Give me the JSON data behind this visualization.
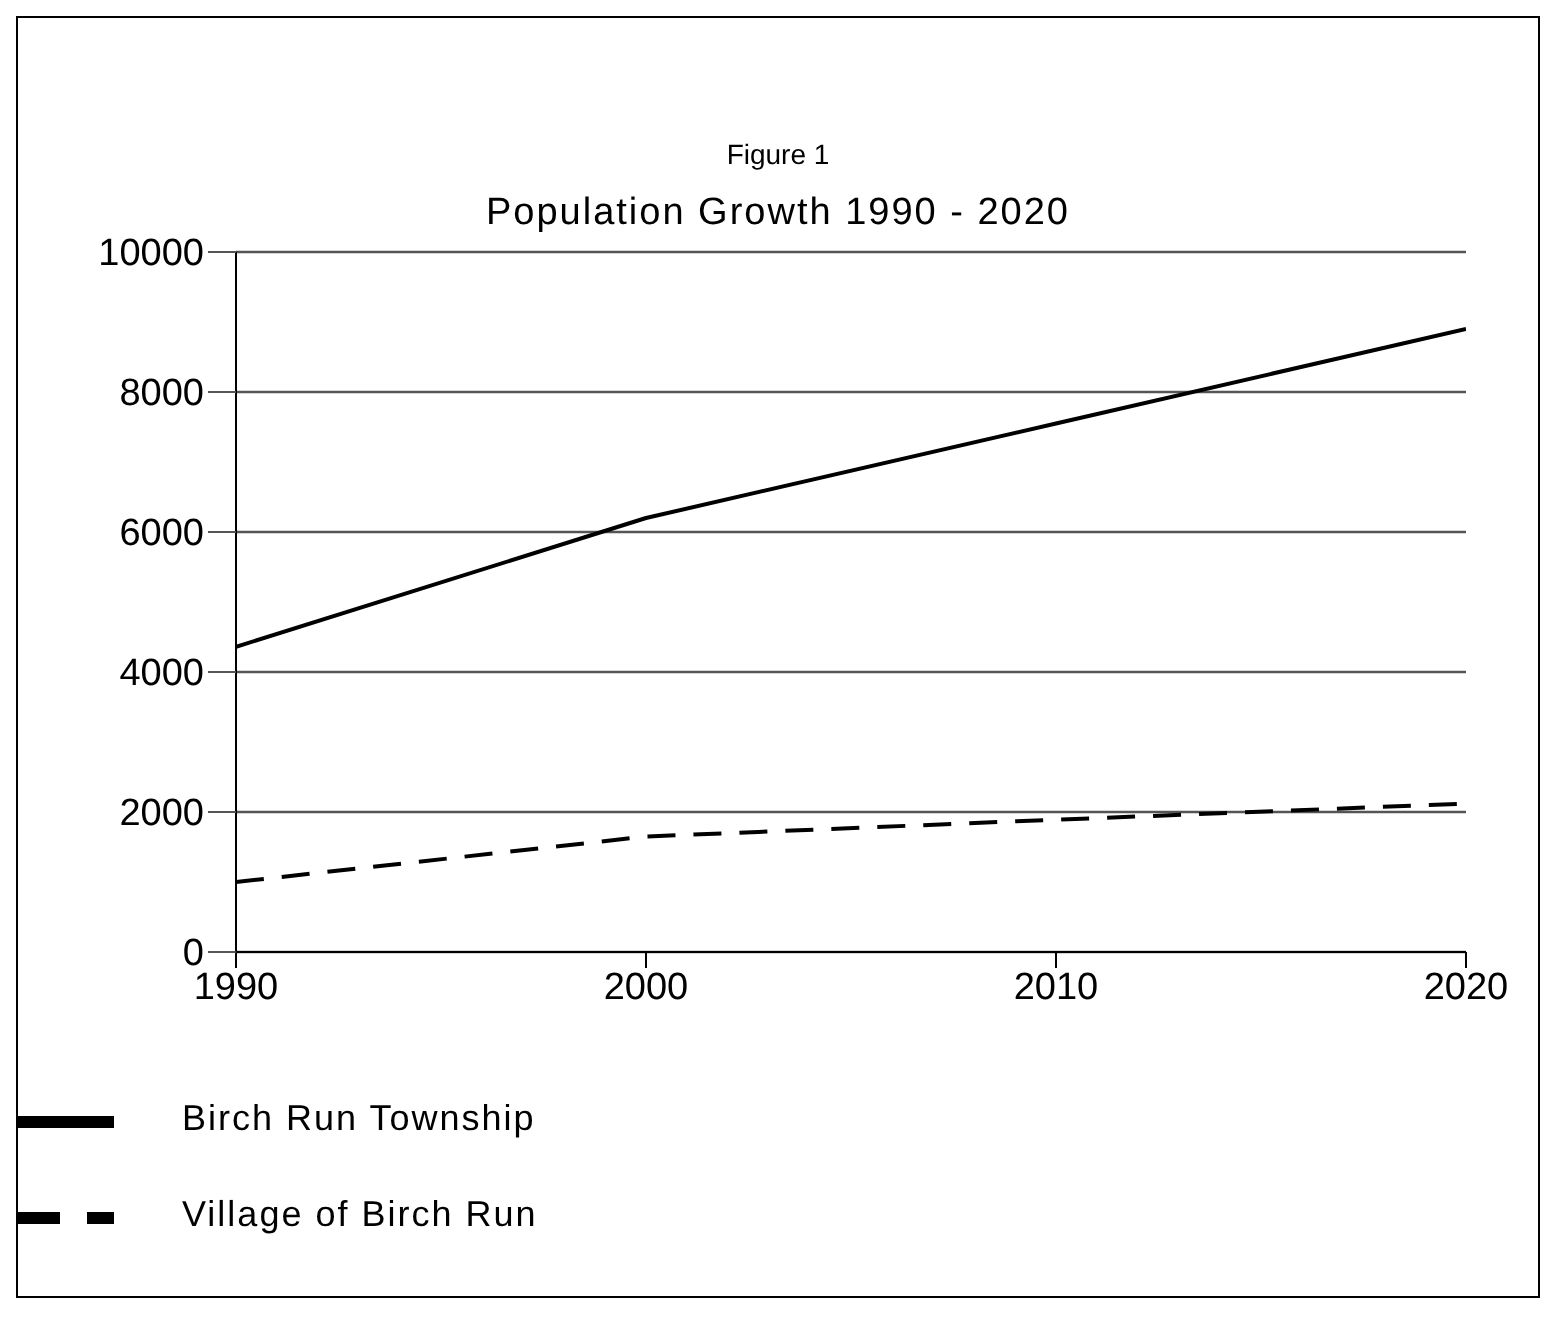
{
  "chart_data": {
    "type": "line",
    "title": "Figure 1",
    "subtitle": "Population Growth 1990 - 2020",
    "x": [
      1990,
      2000,
      2010,
      2020
    ],
    "xlim": [
      1990,
      2020
    ],
    "xticks": [
      1990,
      2000,
      2010,
      2020
    ],
    "ylim": [
      0,
      10000
    ],
    "yticks": [
      0,
      2000,
      4000,
      6000,
      8000,
      10000
    ],
    "grid": "y",
    "legend": "bottom",
    "marker": "none",
    "series": [
      {
        "name": "Birch Run Township",
        "color": "#000000",
        "line_style": "solid",
        "values": [
          4360,
          6200,
          7550,
          8900
        ]
      },
      {
        "name": "Village of Birch Run",
        "color": "#000000",
        "line_style": "dashed",
        "values": [
          1000,
          1650,
          1890,
          2120
        ]
      }
    ]
  }
}
